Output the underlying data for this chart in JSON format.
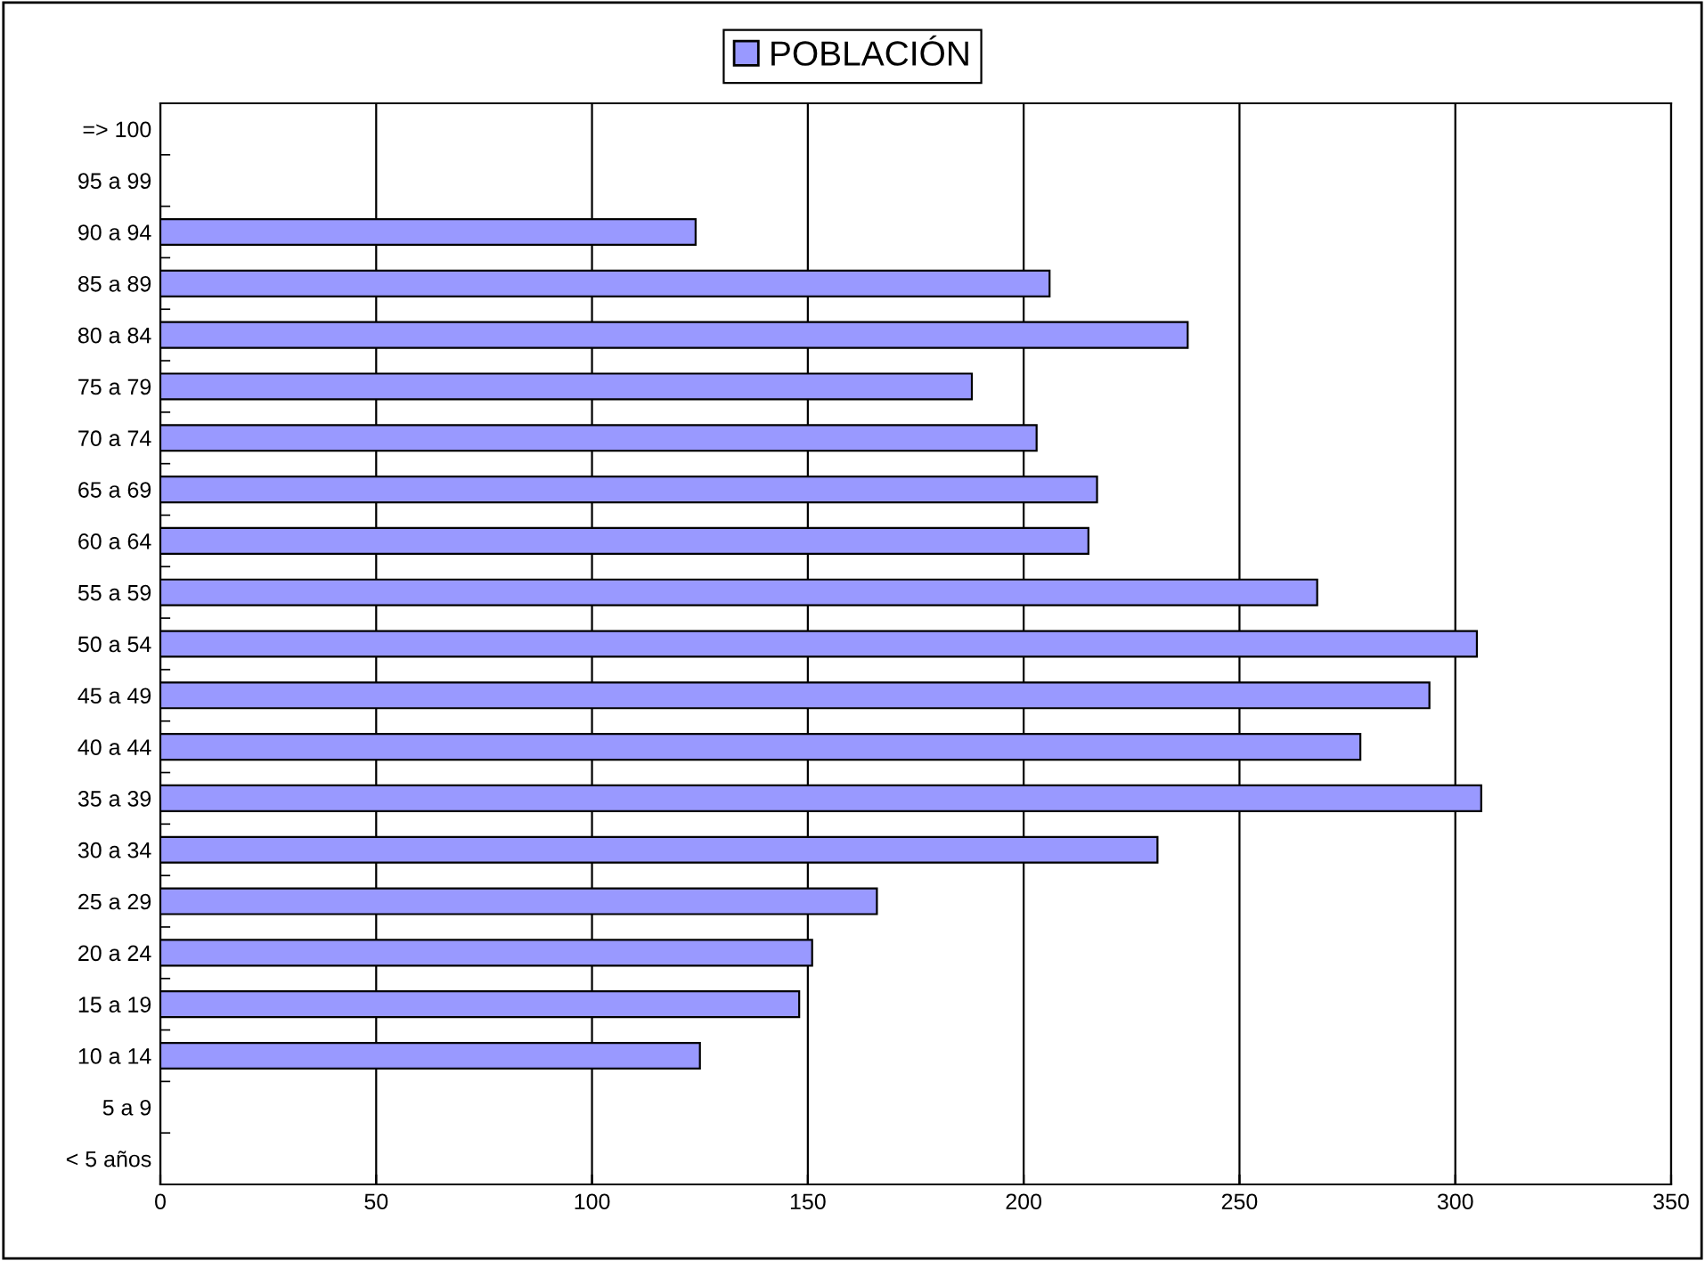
{
  "chart_data": {
    "type": "bar",
    "orientation": "horizontal",
    "categories": [
      "=> 100",
      "95 a 99",
      "90 a 94",
      "85 a 89",
      "80 a 84",
      "75 a 79",
      "70 a 74",
      "65 a 69",
      "60 a 64",
      "55 a 59",
      "50 a 54",
      "45 a 49",
      "40 a 44",
      "35 a 39",
      "30 a 34",
      "25 a 29",
      "20 a 24",
      "15 a 19",
      "10 a 14",
      "5 a 9",
      "< 5 años"
    ],
    "series": [
      {
        "name": "POBLACIÓN",
        "color": "#9999ff",
        "values": [
          null,
          null,
          124,
          206,
          238,
          188,
          203,
          217,
          215,
          268,
          305,
          294,
          278,
          306,
          231,
          166,
          151,
          148,
          125,
          null,
          null
        ]
      }
    ],
    "xlim": [
      0,
      350
    ],
    "xticks": [
      0,
      50,
      100,
      150,
      200,
      250,
      300,
      350
    ],
    "grid": "x",
    "legend": "top"
  }
}
